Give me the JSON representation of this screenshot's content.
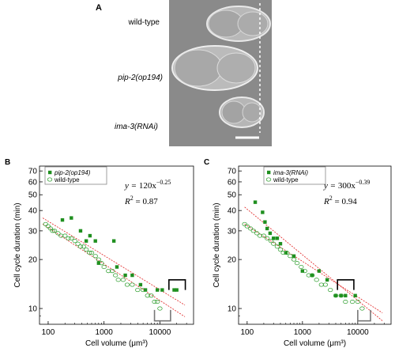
{
  "panel_a": {
    "letter": "A",
    "labels": [
      "wild-type",
      "pip-2(op194)",
      "ima-3(RNAi)"
    ]
  },
  "chart_data": [
    {
      "type": "scatter",
      "panel": "B",
      "xlabel": "Cell volume (μm³)",
      "ylabel": "Cell cycle duration (min)",
      "xscale": "log",
      "yscale": "log",
      "xlim": [
        70,
        40000
      ],
      "ylim": [
        8,
        75
      ],
      "xticks": [
        "100",
        "1000",
        "10000"
      ],
      "yticks": [
        "10",
        "20",
        "30",
        "40",
        "50",
        "60",
        "70"
      ],
      "legend_position": "top-left",
      "fit_eq_prefix": "y =",
      "fit_eq_coef": "120x",
      "fit_eq_exp": "−0.25",
      "r2_label": "R",
      "r2_value": "= 0.87",
      "series": [
        {
          "name": "pip-2(op194)",
          "marker": "filled",
          "color": "#1f8f1f",
          "points": [
            [
              180,
              35
            ],
            [
              260,
              36
            ],
            [
              380,
              30
            ],
            [
              480,
              26
            ],
            [
              560,
              28
            ],
            [
              700,
              26
            ],
            [
              800,
              19
            ],
            [
              1500,
              26
            ],
            [
              1700,
              18
            ],
            [
              2400,
              16
            ],
            [
              3200,
              16
            ],
            [
              4500,
              14
            ],
            [
              5500,
              13
            ],
            [
              9000,
              13
            ],
            [
              11000,
              13
            ],
            [
              18000,
              13
            ],
            [
              20000,
              13
            ]
          ]
        },
        {
          "name": "wild-type",
          "marker": "open",
          "color": "#2e9e2e",
          "points": [
            [
              90,
              33
            ],
            [
              100,
              32
            ],
            [
              110,
              31
            ],
            [
              120,
              30
            ],
            [
              130,
              30
            ],
            [
              150,
              29
            ],
            [
              170,
              28
            ],
            [
              200,
              28
            ],
            [
              230,
              27
            ],
            [
              260,
              27
            ],
            [
              300,
              26
            ],
            [
              340,
              25
            ],
            [
              380,
              24
            ],
            [
              430,
              24
            ],
            [
              480,
              23
            ],
            [
              550,
              22
            ],
            [
              600,
              22
            ],
            [
              700,
              21
            ],
            [
              800,
              20
            ],
            [
              900,
              19
            ],
            [
              1000,
              18
            ],
            [
              1200,
              17
            ],
            [
              1400,
              17
            ],
            [
              1600,
              16
            ],
            [
              1800,
              15
            ],
            [
              2200,
              15
            ],
            [
              2600,
              14
            ],
            [
              3200,
              14
            ],
            [
              4000,
              13
            ],
            [
              5000,
              13
            ],
            [
              6000,
              12
            ],
            [
              7000,
              12
            ],
            [
              8000,
              11
            ],
            [
              9000,
              11
            ],
            [
              10000,
              10
            ]
          ]
        }
      ],
      "fits": [
        [
          [
            80,
            36
          ],
          [
            28000,
            10.5
          ]
        ],
        [
          [
            80,
            33
          ],
          [
            28000,
            8.9
          ]
        ]
      ],
      "brackets": [
        {
          "side": "top",
          "color": "#000000",
          "x": [
            14500,
            28500
          ],
          "y": 15,
          "y_end": 13
        },
        {
          "side": "bottom",
          "color": "#777777",
          "x": [
            8000,
            15500
          ],
          "y": 8.4,
          "y_end": 9.8
        }
      ]
    },
    {
      "type": "scatter",
      "panel": "C",
      "xlabel": "Cell volume (μm³)",
      "ylabel": "Cell cycle duration (min)",
      "xscale": "log",
      "yscale": "log",
      "xlim": [
        70,
        40000
      ],
      "ylim": [
        8,
        75
      ],
      "xticks": [
        "100",
        "1000",
        "10000"
      ],
      "yticks": [
        "10",
        "20",
        "30",
        "40",
        "50",
        "60",
        "70"
      ],
      "legend_position": "top-left",
      "fit_eq_prefix": "y =",
      "fit_eq_coef": "300x",
      "fit_eq_exp": "−0.39",
      "r2_label": "R",
      "r2_value": "= 0.94",
      "series": [
        {
          "name": "ima-3(RNAi)",
          "marker": "filled",
          "color": "#1f8f1f",
          "points": [
            [
              140,
              45
            ],
            [
              190,
              39
            ],
            [
              210,
              34
            ],
            [
              230,
              31
            ],
            [
              260,
              29
            ],
            [
              300,
              27
            ],
            [
              350,
              27
            ],
            [
              400,
              25
            ],
            [
              500,
              22
            ],
            [
              700,
              21
            ],
            [
              1000,
              17
            ],
            [
              1500,
              16
            ],
            [
              2000,
              17
            ],
            [
              2800,
              15
            ],
            [
              4000,
              12
            ],
            [
              5000,
              12
            ],
            [
              6000,
              12
            ],
            [
              9000,
              12
            ]
          ]
        },
        {
          "name": "wild-type",
          "marker": "open",
          "color": "#2e9e2e",
          "points": [
            [
              90,
              33
            ],
            [
              100,
              32
            ],
            [
              115,
              31
            ],
            [
              130,
              30
            ],
            [
              150,
              29
            ],
            [
              170,
              28
            ],
            [
              200,
              28
            ],
            [
              230,
              27
            ],
            [
              270,
              26
            ],
            [
              300,
              25
            ],
            [
              350,
              24
            ],
            [
              400,
              23
            ],
            [
              450,
              22
            ],
            [
              520,
              22
            ],
            [
              600,
              21
            ],
            [
              700,
              20
            ],
            [
              800,
              19
            ],
            [
              950,
              18
            ],
            [
              1100,
              17
            ],
            [
              1300,
              16
            ],
            [
              1500,
              16
            ],
            [
              1800,
              15
            ],
            [
              2200,
              14
            ],
            [
              2600,
              14
            ],
            [
              3200,
              13
            ],
            [
              4000,
              12
            ],
            [
              5000,
              12
            ],
            [
              6000,
              11
            ],
            [
              8000,
              11
            ],
            [
              10000,
              11
            ],
            [
              12000,
              10
            ]
          ]
        }
      ],
      "fits": [
        [
          [
            90,
            42
          ],
          [
            28000,
            8.4
          ]
        ],
        [
          [
            90,
            33
          ],
          [
            28000,
            9.4
          ]
        ]
      ],
      "brackets": [
        {
          "side": "top",
          "color": "#000000",
          "x": [
            4300,
            8500
          ],
          "y": 15,
          "y_end": 13
        },
        {
          "side": "bottom",
          "color": "#777777",
          "x": [
            10000,
            17000
          ],
          "y": 8.4,
          "y_end": 9.8
        }
      ]
    }
  ]
}
